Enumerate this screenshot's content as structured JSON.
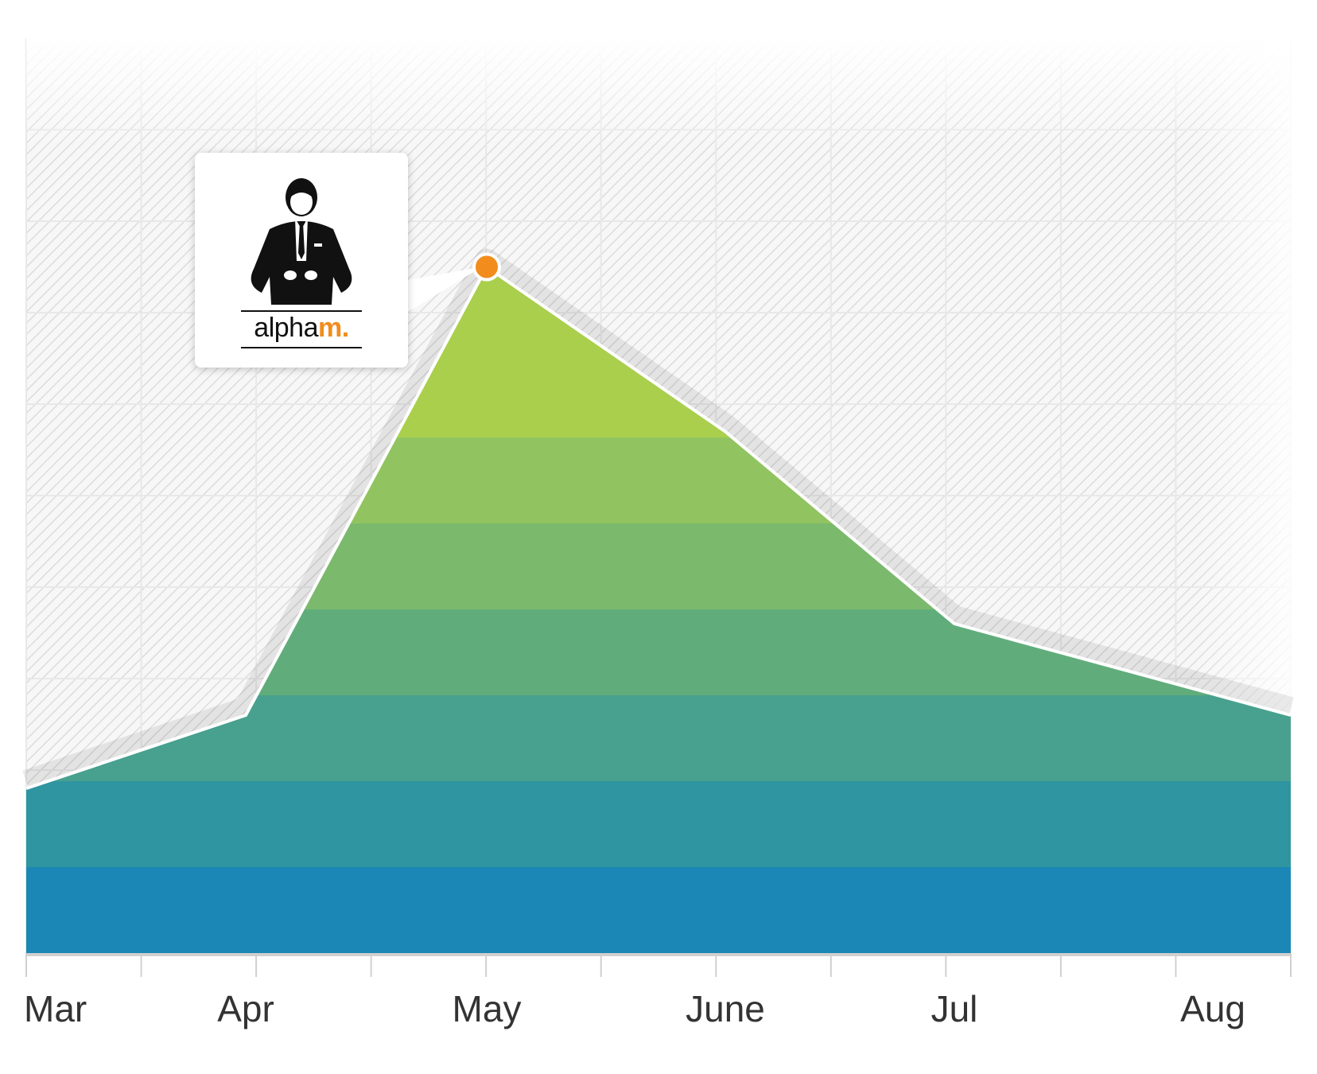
{
  "chart_data": {
    "type": "area",
    "categories": [
      "Mar",
      "Apr",
      "May",
      "June",
      "Jul",
      "Aug"
    ],
    "values": [
      18,
      26,
      75,
      57,
      36,
      26
    ],
    "ylim": [
      0,
      100
    ],
    "grid": true,
    "band_colors": [
      "#1a87b6",
      "#2e95a1",
      "#48a08e",
      "#60ad7b",
      "#7bb96d",
      "#91c460",
      "#a9cf4d"
    ],
    "line_color": "#ffffff",
    "highlight": {
      "category": "May",
      "color": "#f28c1c"
    }
  },
  "tooltip": {
    "logo_text_main": "alpha",
    "logo_text_accent": "m.",
    "logo_icon": "man-in-suit-icon"
  }
}
